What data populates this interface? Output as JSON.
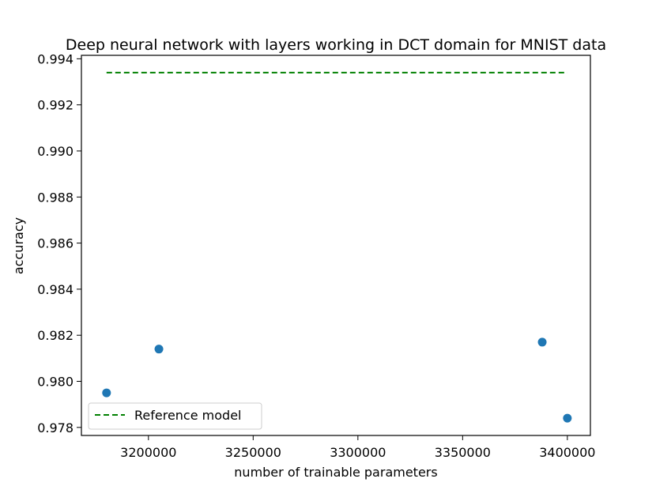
{
  "chart_data": {
    "type": "scatter",
    "title": "Deep neural network with layers working in DCT domain for MNIST data",
    "xlabel": "number of trainable parameters",
    "ylabel": "accuracy",
    "xlim": [
      3168000,
      3411000
    ],
    "ylim": [
      0.97765,
      0.99415
    ],
    "x_ticks": [
      3200000,
      3250000,
      3300000,
      3350000,
      3400000
    ],
    "x_tick_labels": [
      "3200000",
      "3250000",
      "3300000",
      "3350000",
      "3400000"
    ],
    "y_ticks": [
      0.978,
      0.98,
      0.982,
      0.984,
      0.986,
      0.988,
      0.99,
      0.992,
      0.994
    ],
    "y_tick_labels": [
      "0.978",
      "0.980",
      "0.982",
      "0.984",
      "0.986",
      "0.988",
      "0.990",
      "0.992",
      "0.994"
    ],
    "grid": false,
    "legend_position": "lower-left",
    "series": [
      {
        "type": "scatter",
        "color": "#1f77b4",
        "points": [
          {
            "x": 3180000,
            "y": 0.9795
          },
          {
            "x": 3205000,
            "y": 0.9814
          },
          {
            "x": 3388000,
            "y": 0.9817
          },
          {
            "x": 3400000,
            "y": 0.9784
          }
        ]
      },
      {
        "type": "line",
        "name": "Reference model",
        "style": "dashed",
        "color": "#008000",
        "x": [
          3180000,
          3400000
        ],
        "y": [
          0.9934,
          0.9934
        ]
      }
    ]
  }
}
